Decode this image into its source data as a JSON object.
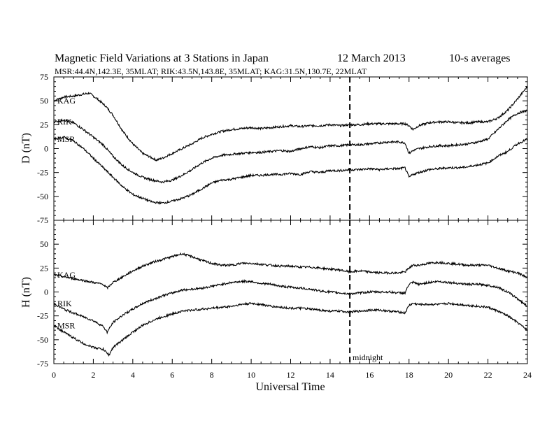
{
  "chart_data": {
    "type": "line",
    "title": "Magnetic Field Variations at 3 Stations in Japan",
    "date": "12 March   2013",
    "averaging": "10-s averages",
    "subtitle": "MSR:44.4N,142.3E, 35MLAT;  RIK:43.5N,143.8E, 35MLAT;  KAG:31.5N,130.7E, 22MLAT",
    "xlabel": "Universal Time",
    "xlim": [
      0,
      24
    ],
    "xticks": [
      0,
      2,
      4,
      6,
      8,
      10,
      12,
      14,
      16,
      18,
      20,
      22,
      24
    ],
    "annotation": {
      "x": 15,
      "label": "midnight"
    },
    "panels": [
      {
        "ylabel": "D (nT)",
        "ylim": [
          -75,
          75
        ],
        "yticks": [
          -75,
          -50,
          -25,
          0,
          25,
          50,
          75
        ],
        "series": [
          {
            "name": "KAG",
            "x": [
              0,
              0.5,
              1,
              1.5,
              1.8,
              2.2,
              2.6,
              3,
              3.5,
              4,
              4.5,
              5,
              5.2,
              5.5,
              6,
              6.5,
              7,
              7.5,
              8,
              8.5,
              9,
              9.5,
              10,
              10.5,
              11,
              11.5,
              12,
              12.5,
              13,
              13.5,
              14,
              14.5,
              15,
              15.5,
              16,
              16.5,
              17,
              17.5,
              17.8,
              18,
              18.2,
              18.5,
              19,
              19.5,
              20,
              20.5,
              21,
              21.5,
              22,
              22.5,
              23,
              23.5,
              24
            ],
            "y": [
              50,
              54,
              55,
              57,
              58,
              52,
              45,
              35,
              18,
              5,
              -5,
              -10,
              -12,
              -10,
              -5,
              0,
              5,
              11,
              15,
              18,
              20,
              21,
              22,
              21,
              22,
              23,
              24,
              23,
              24,
              24,
              25,
              24,
              25,
              25,
              26,
              26,
              26,
              26,
              26,
              24,
              20,
              24,
              27,
              28,
              28,
              27,
              27,
              28,
              28,
              32,
              40,
              52,
              65
            ]
          },
          {
            "name": "RIK",
            "x": [
              0,
              0.5,
              1,
              1.5,
              2,
              2.5,
              3,
              3.5,
              4,
              4.5,
              5,
              5.5,
              6,
              6.5,
              7,
              7.5,
              8,
              8.5,
              9,
              9.5,
              10,
              10.5,
              11,
              11.5,
              12,
              12.5,
              13,
              13.5,
              14,
              14.5,
              15,
              15.5,
              16,
              16.5,
              17,
              17.5,
              17.8,
              18,
              18.2,
              18.5,
              19,
              19.5,
              20,
              20.5,
              21,
              21.5,
              22,
              22.5,
              23,
              23.5,
              24
            ],
            "y": [
              28,
              30,
              27,
              20,
              12,
              4,
              -8,
              -18,
              -25,
              -30,
              -33,
              -35,
              -33,
              -28,
              -22,
              -15,
              -10,
              -7,
              -6,
              -5,
              -4,
              -4,
              -3,
              -2,
              -3,
              0,
              2,
              1,
              3,
              3,
              4,
              4,
              5,
              6,
              7,
              7,
              6,
              -5,
              -2,
              0,
              2,
              3,
              3,
              4,
              5,
              7,
              10,
              20,
              30,
              37,
              40
            ]
          },
          {
            "name": "MSR",
            "x": [
              0,
              0.5,
              1,
              1.5,
              2,
              2.5,
              3,
              3.5,
              4,
              4.5,
              5,
              5.5,
              6,
              6.5,
              7,
              7.5,
              8,
              8.5,
              9,
              9.5,
              10,
              10.5,
              11,
              11.5,
              12,
              12.5,
              13,
              13.5,
              14,
              14.5,
              15,
              15.5,
              16,
              16.5,
              17,
              17.5,
              17.8,
              18,
              18.2,
              18.5,
              19,
              19.5,
              20,
              20.5,
              21,
              21.5,
              22,
              22.5,
              23,
              23.5,
              24
            ],
            "y": [
              10,
              12,
              8,
              0,
              -10,
              -20,
              -30,
              -40,
              -48,
              -52,
              -56,
              -57,
              -55,
              -52,
              -48,
              -42,
              -36,
              -33,
              -32,
              -30,
              -28,
              -28,
              -27,
              -27,
              -26,
              -27,
              -24,
              -25,
              -23,
              -23,
              -22,
              -22,
              -21,
              -22,
              -21,
              -21,
              -20,
              -30,
              -27,
              -25,
              -22,
              -21,
              -20,
              -20,
              -19,
              -17,
              -15,
              -8,
              -3,
              5,
              10
            ]
          }
        ]
      },
      {
        "ylabel": "H (nT)",
        "ylim": [
          -75,
          75
        ],
        "yticks": [
          -75,
          -50,
          -25,
          0,
          25,
          50,
          75
        ],
        "series": [
          {
            "name": "KAG",
            "x": [
              0,
              0.5,
              1,
              1.5,
              2,
              2.5,
              2.7,
              3,
              3.5,
              4,
              4.5,
              5,
              5.5,
              6,
              6.5,
              7,
              7.5,
              8,
              8.5,
              9,
              9.5,
              10,
              10.5,
              11,
              11.5,
              12,
              12.5,
              13,
              13.5,
              14,
              14.5,
              15,
              15.5,
              16,
              16.5,
              17,
              17.5,
              17.8,
              18,
              18.2,
              18.5,
              19,
              19.5,
              20,
              20.5,
              21,
              21.5,
              22,
              22.5,
              23,
              23.5,
              24
            ],
            "y": [
              18,
              16,
              14,
              12,
              10,
              8,
              4,
              10,
              16,
              22,
              27,
              31,
              34,
              37,
              40,
              37,
              33,
              30,
              28,
              28,
              30,
              30,
              29,
              28,
              27,
              27,
              26,
              26,
              25,
              24,
              23,
              21,
              22,
              21,
              20,
              20,
              20,
              21,
              25,
              28,
              28,
              30,
              31,
              30,
              29,
              28,
              28,
              28,
              25,
              22,
              20,
              15
            ]
          },
          {
            "name": "RIK",
            "x": [
              0,
              0.5,
              1,
              1.5,
              2,
              2.5,
              2.7,
              3,
              3.5,
              4,
              4.5,
              5,
              5.5,
              6,
              6.5,
              7,
              7.5,
              8,
              8.5,
              9,
              9.5,
              10,
              10.5,
              11,
              11.5,
              12,
              12.5,
              13,
              13.5,
              14,
              14.5,
              15,
              15.5,
              16,
              16.5,
              17,
              17.5,
              17.8,
              18,
              18.2,
              18.5,
              19,
              19.5,
              20,
              20.5,
              21,
              21.5,
              22,
              22.5,
              23,
              23.5,
              24
            ],
            "y": [
              -12,
              -18,
              -22,
              -26,
              -30,
              -36,
              -42,
              -32,
              -24,
              -18,
              -12,
              -8,
              -4,
              -1,
              2,
              3,
              4,
              6,
              8,
              10,
              11,
              11,
              9,
              8,
              6,
              5,
              4,
              3,
              1,
              0,
              -1,
              -2,
              -1,
              0,
              0,
              0,
              -1,
              -1,
              8,
              10,
              8,
              10,
              11,
              10,
              9,
              8,
              8,
              7,
              5,
              0,
              -7,
              -15
            ]
          },
          {
            "name": "MSR",
            "x": [
              0,
              0.5,
              1,
              1.5,
              2,
              2.5,
              2.8,
              3,
              3.5,
              4,
              4.5,
              5,
              5.5,
              6,
              6.5,
              7,
              7.5,
              8,
              8.5,
              9,
              9.5,
              10,
              10.5,
              11,
              11.5,
              12,
              12.5,
              13,
              13.5,
              14,
              14.5,
              15,
              15.5,
              16,
              16.5,
              17,
              17.5,
              17.8,
              18,
              18.2,
              18.5,
              19,
              19.5,
              20,
              20.5,
              21,
              21.5,
              22,
              22.5,
              23,
              23.5,
              24
            ],
            "y": [
              -35,
              -42,
              -48,
              -54,
              -58,
              -60,
              -66,
              -58,
              -50,
              -42,
              -35,
              -30,
              -26,
              -23,
              -20,
              -19,
              -18,
              -17,
              -16,
              -15,
              -13,
              -12,
              -13,
              -15,
              -16,
              -17,
              -17,
              -18,
              -19,
              -20,
              -20,
              -21,
              -20,
              -19,
              -19,
              -20,
              -21,
              -22,
              -14,
              -12,
              -13,
              -13,
              -13,
              -12,
              -13,
              -14,
              -15,
              -16,
              -20,
              -25,
              -32,
              -40
            ]
          }
        ]
      }
    ]
  }
}
